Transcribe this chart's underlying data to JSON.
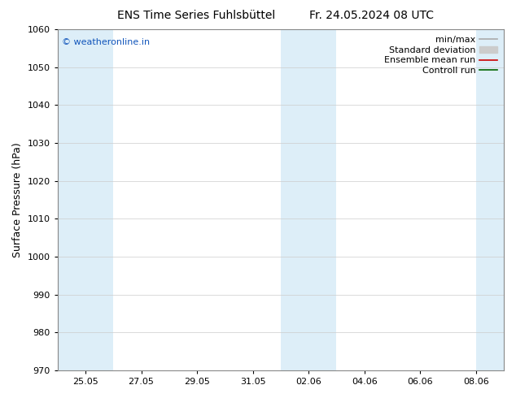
{
  "title_left": "ENS Time Series Fuhlsbüttel",
  "title_right": "Fr. 24.05.2024 08 UTC",
  "ylabel": "Surface Pressure (hPa)",
  "ylim": [
    970,
    1060
  ],
  "yticks": [
    970,
    980,
    990,
    1000,
    1010,
    1020,
    1030,
    1040,
    1050,
    1060
  ],
  "x_tick_labels": [
    "25.05",
    "27.05",
    "29.05",
    "31.05",
    "02.06",
    "04.06",
    "06.06",
    "08.06"
  ],
  "x_tick_positions": [
    1,
    3,
    5,
    7,
    9,
    11,
    13,
    15
  ],
  "x_min": 0,
  "x_max": 16,
  "shaded_bands": [
    {
      "x_start": 0,
      "x_end": 1,
      "color": "#ddeef8"
    },
    {
      "x_start": 1,
      "x_end": 2,
      "color": "#ddeef8"
    },
    {
      "x_start": 8,
      "x_end": 9,
      "color": "#ddeef8"
    },
    {
      "x_start": 9,
      "x_end": 10,
      "color": "#ddeef8"
    },
    {
      "x_start": 15,
      "x_end": 16,
      "color": "#ddeef8"
    }
  ],
  "watermark": "© weatheronline.in",
  "watermark_color": "#1155bb",
  "legend_items": [
    {
      "label": "min/max",
      "color": "#aaaaaa",
      "type": "line",
      "linewidth": 1.2
    },
    {
      "label": "Standard deviation",
      "color": "#cccccc",
      "type": "patch"
    },
    {
      "label": "Ensemble mean run",
      "color": "#cc0000",
      "type": "line",
      "linewidth": 1.2
    },
    {
      "label": "Controll run",
      "color": "#006600",
      "type": "line",
      "linewidth": 1.2
    }
  ],
  "bg_color": "#ffffff",
  "axis_bg_color": "#ffffff",
  "grid_color": "#cccccc",
  "tick_color": "#000000",
  "font_color": "#000000",
  "title_fontsize": 10,
  "axis_label_fontsize": 9,
  "tick_fontsize": 8,
  "legend_fontsize": 8,
  "watermark_fontsize": 8
}
